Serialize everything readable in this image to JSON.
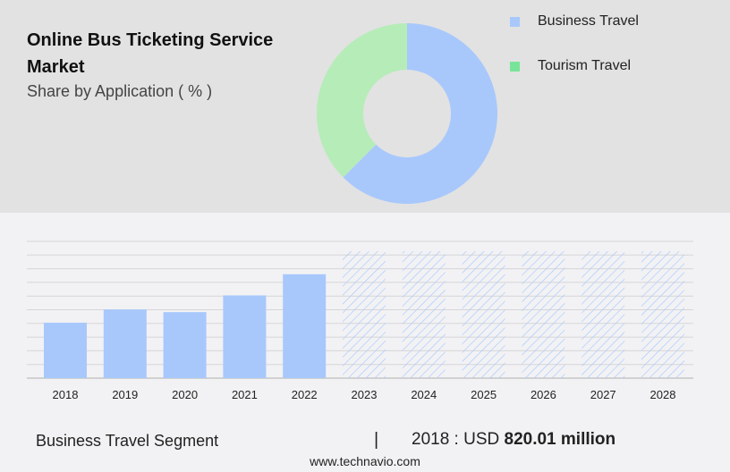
{
  "header": {
    "title": "Online Bus Ticketing Service Market",
    "subtitle": "Share by Application ( % )"
  },
  "colors": {
    "business": "#a8c8fc",
    "tourism": "#b6ecb8",
    "tourism_legend": "#77e49a",
    "hatch": "#a8c8fc"
  },
  "chart_data": [
    {
      "type": "pie",
      "donut": true,
      "categories": [
        "Business Travel",
        "Tourism Travel"
      ],
      "values": [
        62.5,
        37.5
      ],
      "legend": "right"
    },
    {
      "type": "bar",
      "categories": [
        "2018",
        "2019",
        "2020",
        "2021",
        "2022",
        "2023",
        "2024",
        "2025",
        "2026",
        "2027",
        "2028"
      ],
      "series": [
        {
          "name": "Business Travel",
          "values": [
            820.01,
            1015,
            976,
            1223,
            1536,
            null,
            null,
            null,
            null,
            null,
            null
          ]
        }
      ],
      "forecast_categories": [
        "2023",
        "2024",
        "2025",
        "2026",
        "2027",
        "2028"
      ],
      "grid": true,
      "ylim": [
        0,
        2000
      ]
    }
  ],
  "footer": {
    "segment": "Business Travel Segment",
    "separator": "|",
    "value_prefix": "2018 : USD",
    "value": "820.01 million",
    "site": "www.technavio.com"
  }
}
